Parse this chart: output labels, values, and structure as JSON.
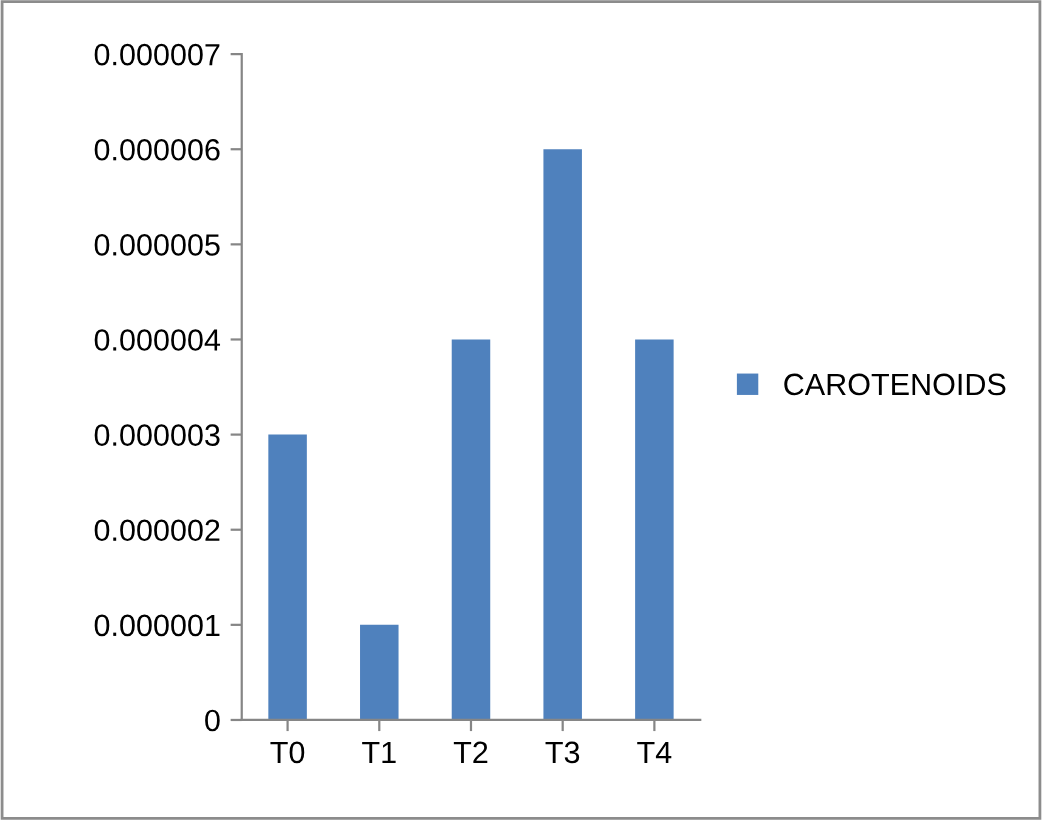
{
  "chart_data": {
    "type": "bar",
    "categories": [
      "T0",
      "T1",
      "T2",
      "T3",
      "T4"
    ],
    "series": [
      {
        "name": "CAROTENOIDS",
        "color": "#4f81bd",
        "values": [
          3e-06,
          1e-06,
          4e-06,
          6e-06,
          4e-06
        ]
      }
    ],
    "ylim": [
      0,
      7e-06
    ],
    "yticks": [
      0,
      {
        "value": 1e-06,
        "label": "0.000001"
      },
      {
        "value": 2e-06,
        "label": "0.000002"
      },
      {
        "value": 3e-06,
        "label": "0.000003"
      },
      {
        "value": 4e-06,
        "label": "0.000004"
      },
      {
        "value": 5e-06,
        "label": "0.000005"
      },
      {
        "value": 6e-06,
        "label": "0.000006"
      },
      {
        "value": 7e-06,
        "label": "0.000007"
      }
    ],
    "grid": false,
    "legend": "right"
  }
}
